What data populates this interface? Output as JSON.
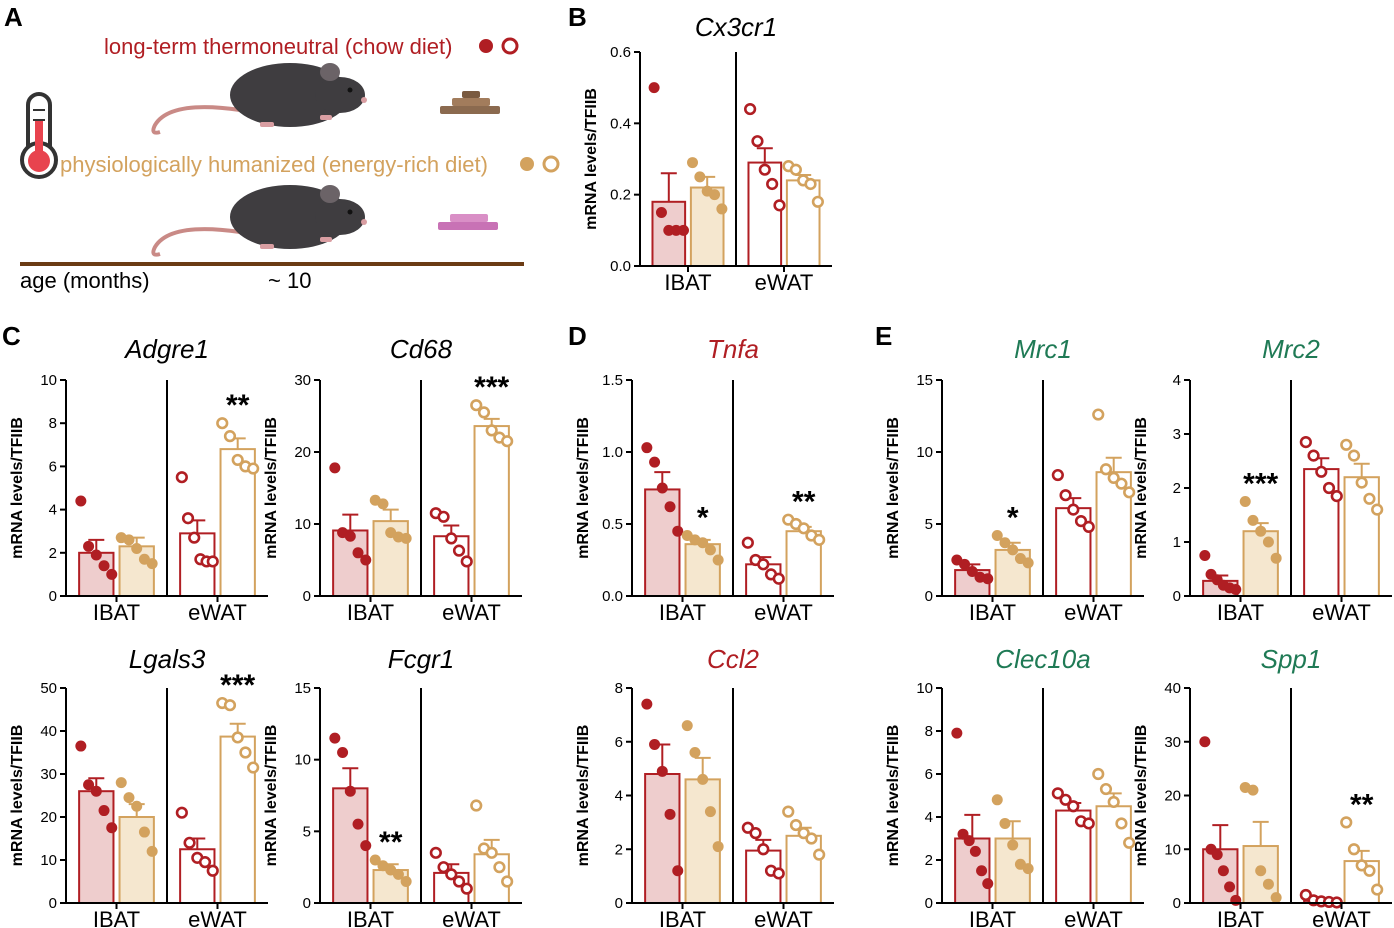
{
  "colors": {
    "thermoneutral": "#b01e23",
    "thermoneutral_fill": "#eecdcd",
    "humanized": "#d3a25e",
    "humanized_fill": "#f5e7cf",
    "green_title": "#1f7a55",
    "red_title": "#b01e23",
    "timeline": "#6b3b14"
  },
  "panel_a": {
    "label": "A",
    "thermoneutral_label": "long-term thermoneutral (chow diet)",
    "humanized_label": "physiologically humanized (energy-rich diet)",
    "age_label": "age (months)",
    "age_value": "~ 10",
    "icons": [
      "thermometer-icon",
      "mouse-icon",
      "chow-pellets-icon",
      "energy-rich-food-icon"
    ]
  },
  "ylabel": "mRNA levels/TFIIB",
  "chart_data": [
    {
      "panel": "B",
      "type": "bar",
      "title": "Cx3cr1",
      "title_color": "black",
      "categories": [
        "IBAT",
        "eWAT"
      ],
      "ylim": [
        0,
        0.6
      ],
      "yticks": [
        "0.0",
        "0.2",
        "0.4",
        "0.6"
      ],
      "series": [
        {
          "name": "long-term thermoneutral (chow diet)",
          "means": [
            0.18,
            0.29
          ],
          "sem": [
            0.08,
            0.04
          ],
          "points": [
            [
              0.5,
              0.15,
              0.1,
              0.1,
              0.1
            ],
            [
              0.44,
              0.35,
              0.27,
              0.23,
              0.17
            ]
          ]
        },
        {
          "name": "physiologically humanized (energy-rich diet)",
          "means": [
            0.22,
            0.24
          ],
          "sem": [
            0.03,
            0.015
          ],
          "points": [
            [
              0.29,
              0.25,
              0.21,
              0.2,
              0.16
            ],
            [
              0.28,
              0.27,
              0.24,
              0.23,
              0.18
            ]
          ]
        }
      ],
      "significance": [
        "",
        ""
      ]
    },
    {
      "panel": "C",
      "type": "bar",
      "title": "Adgre1",
      "title_color": "black",
      "categories": [
        "IBAT",
        "eWAT"
      ],
      "ylim": [
        0,
        10
      ],
      "yticks": [
        "0",
        "2",
        "4",
        "6",
        "8",
        "10"
      ],
      "series": [
        {
          "name": "long-term thermoneutral (chow diet)",
          "means": [
            2.0,
            2.9
          ],
          "sem": [
            0.6,
            0.6
          ],
          "points": [
            [
              4.4,
              2.3,
              1.9,
              1.4,
              1.0
            ],
            [
              5.5,
              3.6,
              2.7,
              1.7,
              1.6,
              1.6
            ]
          ]
        },
        {
          "name": "physiologically humanized (energy-rich diet)",
          "means": [
            2.3,
            6.8
          ],
          "sem": [
            0.4,
            0.5
          ],
          "points": [
            [
              2.7,
              2.6,
              2.2,
              1.7,
              1.5
            ],
            [
              8.0,
              7.4,
              6.3,
              6.0,
              5.9
            ]
          ]
        }
      ],
      "significance": [
        "",
        "**"
      ]
    },
    {
      "panel": "C",
      "type": "bar",
      "title": "Cd68",
      "title_color": "black",
      "categories": [
        "IBAT",
        "eWAT"
      ],
      "ylim": [
        0,
        30
      ],
      "yticks": [
        "0",
        "10",
        "20",
        "30"
      ],
      "series": [
        {
          "name": "long-term thermoneutral (chow diet)",
          "means": [
            9.1,
            8.3
          ],
          "sem": [
            2.2,
            1.5
          ],
          "points": [
            [
              17.8,
              8.8,
              8.3,
              6.0,
              5.0
            ],
            [
              11.5,
              11.0,
              8.0,
              6.3,
              4.8
            ]
          ]
        },
        {
          "name": "physiologically humanized (energy-rich diet)",
          "means": [
            10.4,
            23.6
          ],
          "sem": [
            1.6,
            1.0
          ],
          "points": [
            [
              13.3,
              12.8,
              8.8,
              8.2,
              8.0
            ],
            [
              26.5,
              25.5,
              23.0,
              22.0,
              21.5
            ]
          ]
        }
      ],
      "significance": [
        "",
        "***"
      ]
    },
    {
      "panel": "C",
      "type": "bar",
      "title": "Lgals3",
      "title_color": "black",
      "categories": [
        "IBAT",
        "eWAT"
      ],
      "ylim": [
        0,
        50
      ],
      "yticks": [
        "0",
        "10",
        "20",
        "30",
        "40",
        "50"
      ],
      "series": [
        {
          "name": "long-term thermoneutral (chow diet)",
          "means": [
            26.0,
            12.5
          ],
          "sem": [
            3.0,
            2.5
          ],
          "points": [
            [
              36.5,
              27.5,
              26.0,
              21.5,
              17.5
            ],
            [
              21.0,
              14.0,
              10.5,
              9.5,
              7.5
            ]
          ]
        },
        {
          "name": "physiologically humanized (energy-rich diet)",
          "means": [
            20.0,
            38.7
          ],
          "sem": [
            3.0,
            3.0
          ],
          "points": [
            [
              28.0,
              24.5,
              22.5,
              16.5,
              12.0
            ],
            [
              46.5,
              46.0,
              38.5,
              35.0,
              31.5
            ]
          ]
        }
      ],
      "significance": [
        "",
        "***"
      ]
    },
    {
      "panel": "C",
      "type": "bar",
      "title": "Fcgr1",
      "title_color": "black",
      "categories": [
        "IBAT",
        "eWAT"
      ],
      "ylim": [
        0,
        15
      ],
      "yticks": [
        "0",
        "5",
        "10",
        "15"
      ],
      "series": [
        {
          "name": "long-term thermoneutral (chow diet)",
          "means": [
            8.0,
            2.1
          ],
          "sem": [
            1.4,
            0.6
          ],
          "points": [
            [
              11.5,
              10.5,
              7.8,
              5.5,
              4.0
            ],
            [
              3.5,
              2.5,
              2.0,
              1.5,
              1.0
            ]
          ]
        },
        {
          "name": "physiologically humanized (energy-rich diet)",
          "means": [
            2.3,
            3.4
          ],
          "sem": [
            0.4,
            1.0
          ],
          "points": [
            [
              3.0,
              2.6,
              2.3,
              2.0,
              1.5
            ],
            [
              6.8,
              3.8,
              3.5,
              2.5,
              1.5
            ]
          ]
        }
      ],
      "significance": [
        "**",
        ""
      ]
    },
    {
      "panel": "D",
      "type": "bar",
      "title": "Tnfa",
      "title_color": "red",
      "categories": [
        "IBAT",
        "eWAT"
      ],
      "ylim": [
        0,
        1.5
      ],
      "yticks": [
        "0.0",
        "0.5",
        "1.0",
        "1.5"
      ],
      "series": [
        {
          "name": "long-term thermoneutral (chow diet)",
          "means": [
            0.74,
            0.22
          ],
          "sem": [
            0.12,
            0.05
          ],
          "points": [
            [
              1.03,
              0.93,
              0.75,
              0.62,
              0.45
            ],
            [
              0.37,
              0.25,
              0.22,
              0.15,
              0.12
            ]
          ]
        },
        {
          "name": "physiologically humanized (energy-rich diet)",
          "means": [
            0.36,
            0.45
          ],
          "sem": [
            0.03,
            0.03
          ],
          "points": [
            [
              0.42,
              0.39,
              0.37,
              0.32,
              0.25
            ],
            [
              0.53,
              0.5,
              0.47,
              0.42,
              0.39
            ]
          ]
        }
      ],
      "significance": [
        "*",
        "**"
      ]
    },
    {
      "panel": "D",
      "type": "bar",
      "title": "Ccl2",
      "title_color": "red",
      "categories": [
        "IBAT",
        "eWAT"
      ],
      "ylim": [
        0,
        8
      ],
      "yticks": [
        "0",
        "2",
        "4",
        "6",
        "8"
      ],
      "series": [
        {
          "name": "long-term thermoneutral (chow diet)",
          "means": [
            4.8,
            1.95
          ],
          "sem": [
            1.1,
            0.4
          ],
          "points": [
            [
              7.4,
              5.9,
              4.9,
              3.3,
              1.2
            ],
            [
              2.8,
              2.6,
              2.0,
              1.2,
              1.1
            ]
          ]
        },
        {
          "name": "physiologically humanized (energy-rich diet)",
          "means": [
            4.6,
            2.5
          ],
          "sem": [
            0.8,
            0.3
          ],
          "points": [
            [
              6.6,
              5.6,
              4.6,
              3.4,
              2.1
            ],
            [
              3.4,
              2.9,
              2.6,
              2.4,
              1.8
            ]
          ]
        }
      ],
      "significance": [
        "",
        ""
      ]
    },
    {
      "panel": "E",
      "type": "bar",
      "title": "Mrc1",
      "title_color": "green",
      "categories": [
        "IBAT",
        "eWAT"
      ],
      "ylim": [
        0,
        15
      ],
      "yticks": [
        "0",
        "5",
        "10",
        "15"
      ],
      "series": [
        {
          "name": "long-term thermoneutral (chow diet)",
          "means": [
            1.8,
            6.1
          ],
          "sem": [
            0.4,
            0.7
          ],
          "points": [
            [
              2.5,
              2.2,
              1.7,
              1.3,
              1.2
            ],
            [
              8.4,
              7.0,
              6.0,
              5.2,
              4.8
            ]
          ]
        },
        {
          "name": "physiologically humanized (energy-rich diet)",
          "means": [
            3.2,
            8.6
          ],
          "sem": [
            0.5,
            1.0
          ],
          "points": [
            [
              4.2,
              3.7,
              3.2,
              2.6,
              2.3
            ],
            [
              12.6,
              8.8,
              8.2,
              7.8,
              7.2
            ]
          ]
        }
      ],
      "significance": [
        "*",
        ""
      ]
    },
    {
      "panel": "E",
      "type": "bar",
      "title": "Mrc2",
      "title_color": "green",
      "categories": [
        "IBAT",
        "eWAT"
      ],
      "ylim": [
        0,
        4
      ],
      "yticks": [
        "0",
        "1",
        "2",
        "3",
        "4"
      ],
      "series": [
        {
          "name": "long-term thermoneutral (chow diet)",
          "means": [
            0.28,
            2.35
          ],
          "sem": [
            0.1,
            0.2
          ],
          "points": [
            [
              0.75,
              0.4,
              0.3,
              0.2,
              0.15,
              0.12
            ],
            [
              2.85,
              2.6,
              2.3,
              2.0,
              1.85
            ]
          ]
        },
        {
          "name": "physiologically humanized (energy-rich diet)",
          "means": [
            1.2,
            2.2
          ],
          "sem": [
            0.15,
            0.25
          ],
          "points": [
            [
              1.75,
              1.4,
              1.2,
              1.0,
              0.7
            ],
            [
              2.8,
              2.6,
              2.1,
              1.8,
              1.6
            ]
          ]
        }
      ],
      "significance": [
        "***",
        ""
      ]
    },
    {
      "panel": "E",
      "type": "bar",
      "title": "Clec10a",
      "title_color": "green",
      "categories": [
        "IBAT",
        "eWAT"
      ],
      "ylim": [
        0,
        10
      ],
      "yticks": [
        "0",
        "2",
        "4",
        "6",
        "8",
        "10"
      ],
      "series": [
        {
          "name": "long-term thermoneutral (chow diet)",
          "means": [
            3.0,
            4.3
          ],
          "sem": [
            1.1,
            0.35
          ],
          "points": [
            [
              7.9,
              3.2,
              2.9,
              2.4,
              1.5,
              0.9
            ],
            [
              5.1,
              4.8,
              4.5,
              3.8,
              3.7
            ]
          ]
        },
        {
          "name": "physiologically humanized (energy-rich diet)",
          "means": [
            3.0,
            4.5
          ],
          "sem": [
            0.8,
            0.6
          ],
          "points": [
            [
              4.8,
              3.7,
              2.7,
              1.8,
              1.6
            ],
            [
              6.0,
              5.3,
              4.7,
              3.7,
              2.8
            ]
          ]
        }
      ],
      "significance": [
        "",
        ""
      ]
    },
    {
      "panel": "E",
      "type": "bar",
      "title": "Spp1",
      "title_color": "green",
      "categories": [
        "IBAT",
        "eWAT"
      ],
      "ylim": [
        0,
        40
      ],
      "yticks": [
        "0",
        "10",
        "20",
        "30",
        "40"
      ],
      "series": [
        {
          "name": "long-term thermoneutral (chow diet)",
          "means": [
            10.0,
            0.4
          ],
          "sem": [
            4.5,
            0.3
          ],
          "points": [
            [
              30.0,
              10.0,
              9.0,
              6.0,
              3.0,
              0.5
            ],
            [
              1.5,
              0.5,
              0.3,
              0.2,
              0.1
            ]
          ]
        },
        {
          "name": "physiologically humanized (energy-rich diet)",
          "means": [
            10.6,
            7.8
          ],
          "sem": [
            4.5,
            1.9
          ],
          "points": [
            [
              21.5,
              21.0,
              6.0,
              3.5,
              1.0
            ],
            [
              15.0,
              10.0,
              7.0,
              6.0,
              2.5
            ]
          ]
        }
      ],
      "significance": [
        "",
        "**"
      ]
    }
  ]
}
